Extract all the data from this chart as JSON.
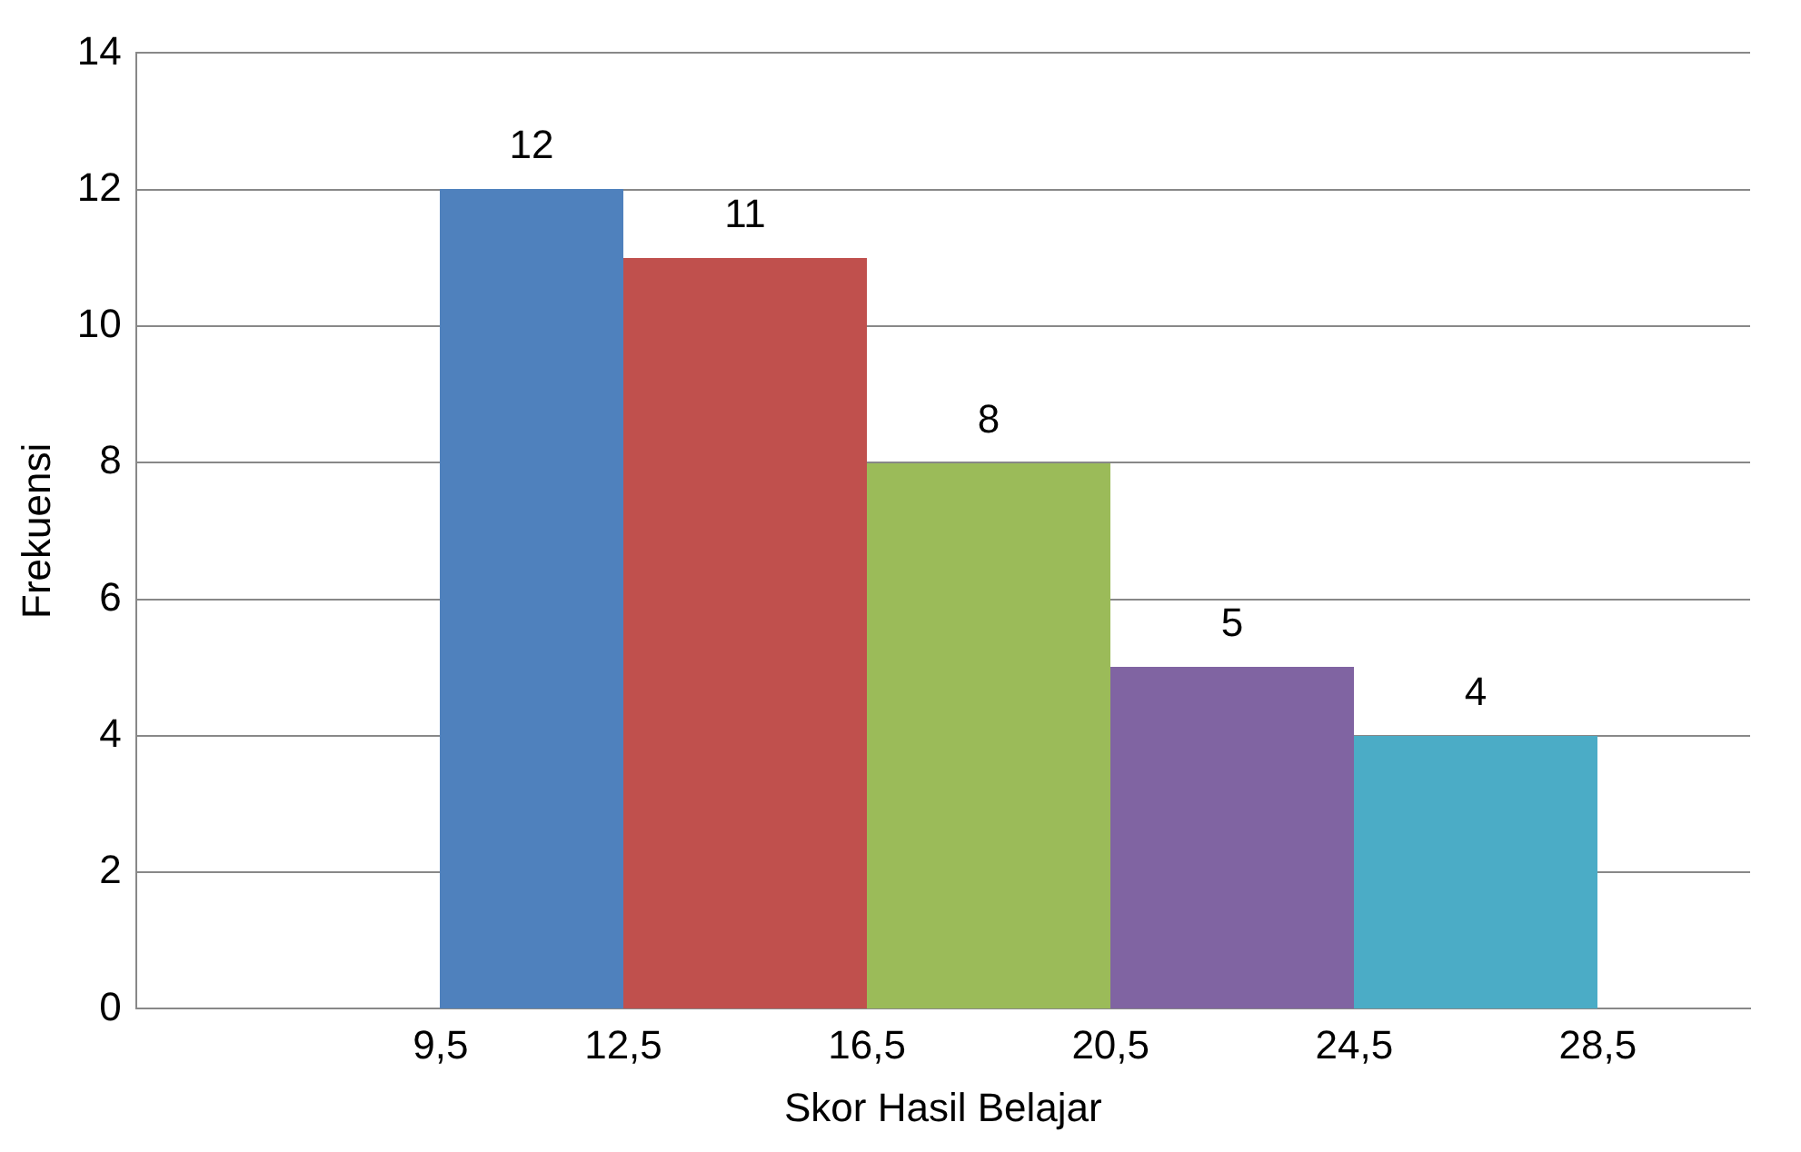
{
  "chart_data": {
    "type": "histogram",
    "xlabel": "Skor Hasil Belajar",
    "ylabel": "Frekuensi",
    "bins": [
      9.5,
      12.5,
      16.5,
      20.5,
      24.5,
      28.5
    ],
    "values": [
      12,
      11,
      8,
      5,
      4
    ],
    "colors": [
      "#4f81bd",
      "#c0504d",
      "#9bbb59",
      "#8064a2",
      "#4bacc6"
    ],
    "xlim": [
      4.5,
      31
    ],
    "xticks": [
      {
        "value": 9.5,
        "label": "9,5"
      },
      {
        "value": 12.5,
        "label": "12,5"
      },
      {
        "value": 16.5,
        "label": "16,5"
      },
      {
        "value": 20.5,
        "label": "20,5"
      },
      {
        "value": 24.5,
        "label": "24,5"
      },
      {
        "value": 28.5,
        "label": "28,5"
      }
    ],
    "ylim": [
      0,
      14
    ],
    "yticks": [
      0,
      2,
      4,
      6,
      8,
      10,
      12,
      14
    ],
    "grid": "y",
    "data_labels": true,
    "legend": false
  }
}
